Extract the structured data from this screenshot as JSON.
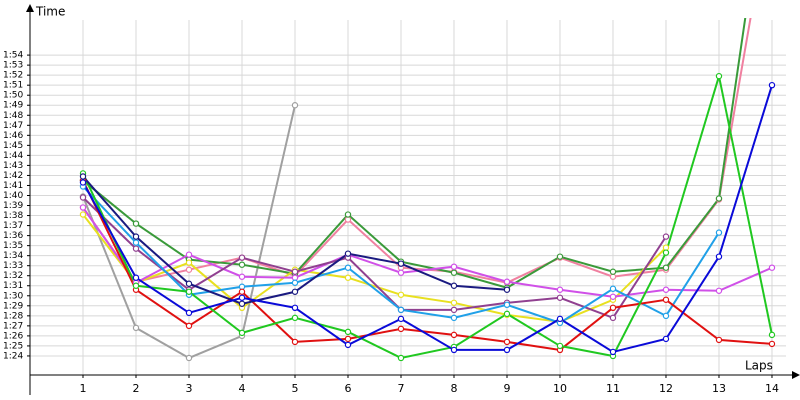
{
  "chart_data": {
    "type": "line",
    "y_title": "Time",
    "x_title": "Laps",
    "xlim": [
      0,
      14.34
    ],
    "xticks": [
      1,
      2,
      3,
      4,
      5,
      6,
      7,
      8,
      9,
      10,
      11,
      12,
      13,
      14
    ],
    "ylim": [
      82.1,
      117.5
    ],
    "yticks": [
      {
        "value": 84,
        "label": "1:24"
      },
      {
        "value": 85,
        "label": "1:25"
      },
      {
        "value": 86,
        "label": "1:26"
      },
      {
        "value": 87,
        "label": "1:27"
      },
      {
        "value": 88,
        "label": "1:28"
      },
      {
        "value": 89,
        "label": "1:29"
      },
      {
        "value": 90,
        "label": "1:30"
      },
      {
        "value": 91,
        "label": "1:31"
      },
      {
        "value": 92,
        "label": "1:32"
      },
      {
        "value": 93,
        "label": "1:33"
      },
      {
        "value": 94,
        "label": "1:34"
      },
      {
        "value": 95,
        "label": "1:35"
      },
      {
        "value": 96,
        "label": "1:36"
      },
      {
        "value": 97,
        "label": "1:37"
      },
      {
        "value": 98,
        "label": "1:38"
      },
      {
        "value": 99,
        "label": "1:39"
      },
      {
        "value": 100,
        "label": "1:40"
      },
      {
        "value": 101,
        "label": "1:41"
      },
      {
        "value": 102,
        "label": "1:42"
      },
      {
        "value": 103,
        "label": "1:43"
      },
      {
        "value": 104,
        "label": "1:44"
      },
      {
        "value": 105,
        "label": "1:45"
      },
      {
        "value": 106,
        "label": "1:46"
      },
      {
        "value": 107,
        "label": "1:47"
      },
      {
        "value": 108,
        "label": "1:48"
      },
      {
        "value": 109,
        "label": "1:49"
      },
      {
        "value": 110,
        "label": "1:50"
      },
      {
        "value": 111,
        "label": "1:51"
      },
      {
        "value": 112,
        "label": "1:52"
      },
      {
        "value": 113,
        "label": "1:53"
      },
      {
        "value": 114,
        "label": "1:54"
      }
    ],
    "grid": true,
    "x": [
      1,
      2,
      3,
      4,
      5,
      6,
      7,
      8,
      9,
      10,
      11,
      12,
      13,
      14
    ],
    "series": [
      {
        "color": "#a0a0a0",
        "values": [
          99.9,
          86.8,
          83.8,
          86.0,
          109.0,
          null,
          null,
          null,
          null,
          null,
          null,
          null,
          null,
          null
        ]
      },
      {
        "color": "#f080a0",
        "values": [
          98.8,
          91.4,
          92.6,
          93.8,
          92.0,
          97.6,
          92.8,
          92.4,
          91.3,
          93.8,
          91.9,
          92.6,
          99.6,
          130
        ]
      },
      {
        "color": "#3a9a3a",
        "values": [
          101.5,
          97.2,
          93.6,
          93.1,
          92.2,
          98.1,
          93.4,
          92.3,
          90.8,
          93.9,
          92.4,
          92.8,
          99.7,
          136
        ]
      },
      {
        "color": "#e8e020",
        "values": [
          98.1,
          91.3,
          93.3,
          88.8,
          92.6,
          91.8,
          90.1,
          89.3,
          88.1,
          87.4,
          89.6,
          94.8,
          null,
          null
        ]
      },
      {
        "color": "#d050e8",
        "values": [
          98.8,
          91.3,
          94.1,
          91.9,
          91.8,
          94.1,
          92.3,
          92.9,
          91.4,
          90.6,
          89.9,
          90.6,
          90.5,
          92.8
        ]
      },
      {
        "color": "#904090",
        "values": [
          99.8,
          94.7,
          90.6,
          93.8,
          92.4,
          93.8,
          88.6,
          88.6,
          89.3,
          89.8,
          87.8,
          95.9,
          null,
          null
        ]
      },
      {
        "color": "#20a0e8",
        "values": [
          100.9,
          95.3,
          90.1,
          90.9,
          91.3,
          92.8,
          88.6,
          87.8,
          89.1,
          87.3,
          90.7,
          88.0,
          96.3,
          null
        ]
      },
      {
        "color": "#e01010",
        "values": [
          101.5,
          90.6,
          87.0,
          90.4,
          85.4,
          85.7,
          86.7,
          86.1,
          85.4,
          84.6,
          88.8,
          89.6,
          85.6,
          85.2
        ]
      },
      {
        "color": "#20c820",
        "values": [
          102.2,
          91.0,
          90.4,
          86.3,
          87.8,
          86.4,
          83.8,
          84.9,
          88.2,
          85.0,
          84.0,
          94.3,
          111.9,
          86.1
        ]
      },
      {
        "color": "#1a1a80",
        "values": [
          101.9,
          95.9,
          91.2,
          89.2,
          90.4,
          94.2,
          93.2,
          91.0,
          90.6,
          null,
          null,
          null,
          null,
          null
        ]
      },
      {
        "color": "#0a0ad8",
        "values": [
          101.3,
          91.8,
          88.3,
          89.8,
          88.8,
          85.1,
          87.7,
          84.6,
          84.6,
          87.7,
          84.4,
          85.7,
          93.9,
          111.0
        ]
      }
    ]
  }
}
